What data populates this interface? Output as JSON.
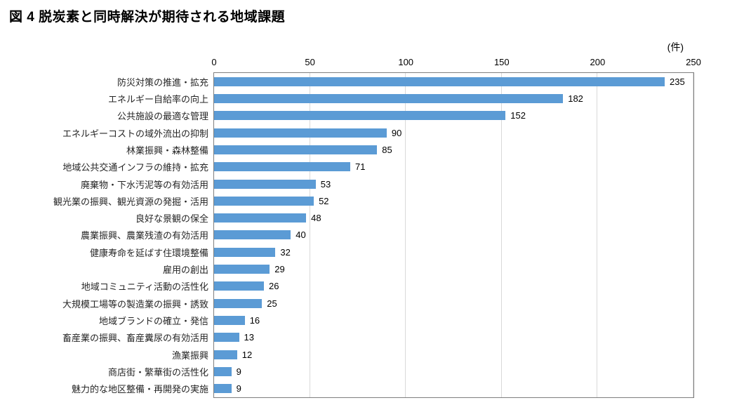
{
  "title": "図 4 脱炭素と同時解決が期待される地域課題",
  "unit_label": "(件)",
  "chart_data": {
    "type": "bar",
    "orientation": "horizontal",
    "title": "図 4 脱炭素と同時解決が期待される地域課題",
    "unit": "(件)",
    "categories": [
      "防災対策の推進・拡充",
      "エネルギー自給率の向上",
      "公共施設の最適な管理",
      "エネルギーコストの域外流出の抑制",
      "林業振興・森林整備",
      "地域公共交通インフラの維持・拡充",
      "廃棄物・下水汚泥等の有効活用",
      "観光業の振興、観光資源の発掘・活用",
      "良好な景観の保全",
      "農業振興、農業残渣の有効活用",
      "健康寿命を延ばす住環境整備",
      "雇用の創出",
      "地域コミュニティ活動の活性化",
      "大規模工場等の製造業の振興・誘致",
      "地域ブランドの確立・発信",
      "畜産業の振興、畜産糞尿の有効活用",
      "漁業振興",
      "商店街・繁華街の活性化",
      "魅力的な地区整備・再開発の実施"
    ],
    "values": [
      235,
      182,
      152,
      90,
      85,
      71,
      53,
      52,
      48,
      40,
      32,
      29,
      26,
      25,
      16,
      13,
      12,
      9,
      9
    ],
    "xlim": [
      0,
      250
    ],
    "x_ticks": [
      0,
      50,
      100,
      150,
      200,
      250
    ],
    "grid": true,
    "value_labels": true,
    "legend": "none",
    "bar_color": "#5B9BD5",
    "gridline_color": "#D9D9D9",
    "plot_border_color": "#7F7F7F"
  }
}
